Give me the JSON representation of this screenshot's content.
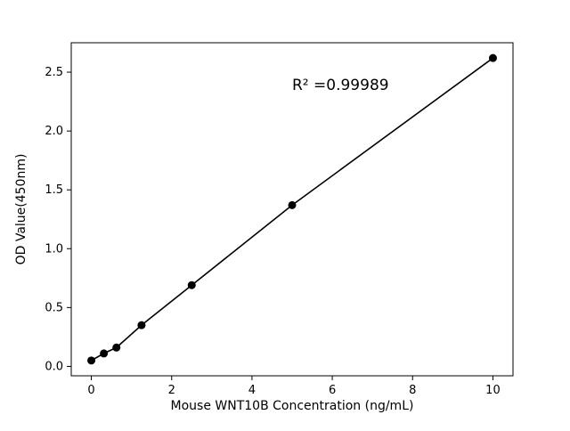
{
  "chart_data": {
    "type": "scatter",
    "x": [
      0,
      0.3125,
      0.625,
      1.25,
      2.5,
      5,
      10
    ],
    "y": [
      0.05,
      0.11,
      0.16,
      0.35,
      0.69,
      1.37,
      2.62
    ],
    "title": "",
    "xlabel": "Mouse WNT10B Concentration (ng/mL)",
    "ylabel": "OD Value(450nm)",
    "xlim": [
      -0.5,
      10.5
    ],
    "ylim": [
      -0.08,
      2.75
    ],
    "xticks": [
      0,
      2,
      4,
      6,
      8,
      10
    ],
    "xtick_labels": [
      "0",
      "2",
      "4",
      "6",
      "8",
      "10"
    ],
    "yticks": [
      0.0,
      0.5,
      1.0,
      1.5,
      2.0,
      2.5
    ],
    "ytick_labels": [
      "0.0",
      "0.5",
      "1.0",
      "1.5",
      "2.0",
      "2.5"
    ],
    "line": true,
    "grid": false,
    "legend": "none",
    "marker_color": "#000000",
    "line_color": "#000000",
    "background_color": "#ffffff",
    "annotation": {
      "text": "R² =0.99989",
      "x": 5.0,
      "y": 2.35
    }
  }
}
